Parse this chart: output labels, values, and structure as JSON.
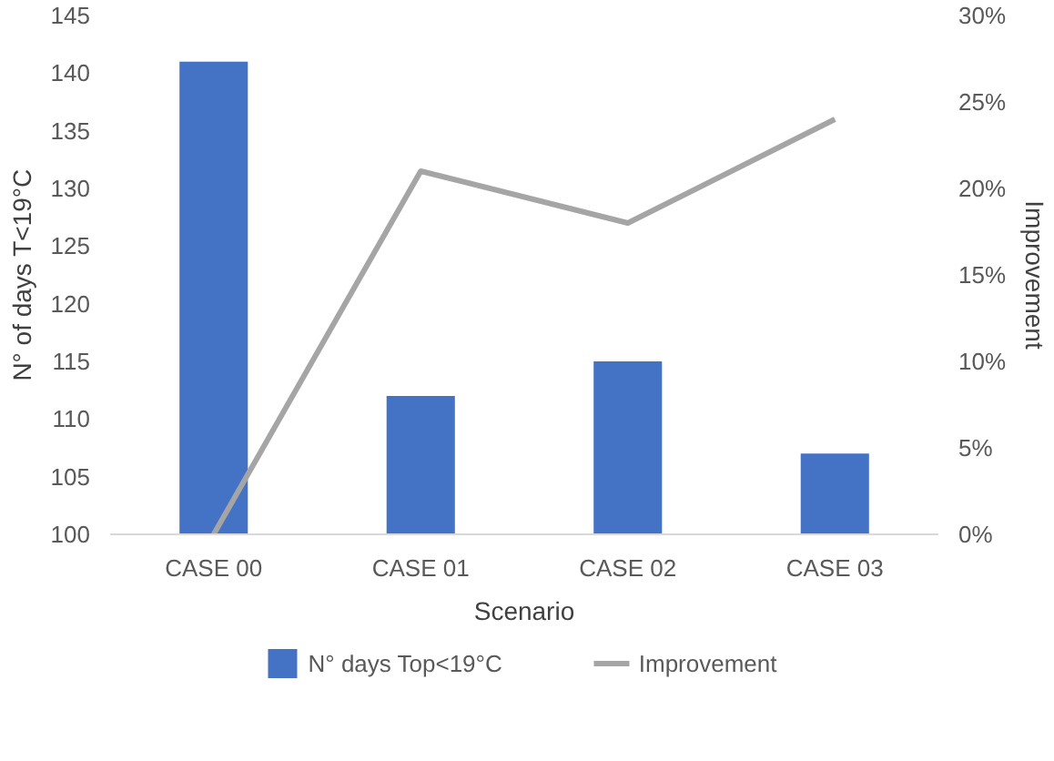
{
  "chart_data": {
    "type": "bar",
    "xlabel": "Scenario",
    "ylabel": "N° of days T<19°C",
    "y2label": "Improvement",
    "categories": [
      "CASE 00",
      "CASE 01",
      "CASE 02",
      "CASE 03"
    ],
    "series": [
      {
        "name": "N° days Top<19°C",
        "color": "#4472c4",
        "values": [
          141,
          112,
          115,
          107
        ]
      },
      {
        "name": "Improvement",
        "type": "line",
        "axis": "y2",
        "color": "#a5a5a5",
        "values": [
          0,
          21,
          18,
          24
        ]
      }
    ],
    "ylim": [
      100,
      145
    ],
    "yticks": [
      100,
      105,
      110,
      115,
      120,
      125,
      130,
      135,
      140,
      145
    ],
    "y2lim": [
      0,
      30
    ],
    "y2ticks": [
      {
        "value": 0,
        "label": "0%"
      },
      {
        "value": 5,
        "label": "5%"
      },
      {
        "value": 10,
        "label": "10%"
      },
      {
        "value": 15,
        "label": "15%"
      },
      {
        "value": 20,
        "label": "20%"
      },
      {
        "value": 25,
        "label": "25%"
      },
      {
        "value": 30,
        "label": "30%"
      }
    ],
    "legend": "bottom",
    "grid": false,
    "marker": "none",
    "line_style": "solid"
  }
}
